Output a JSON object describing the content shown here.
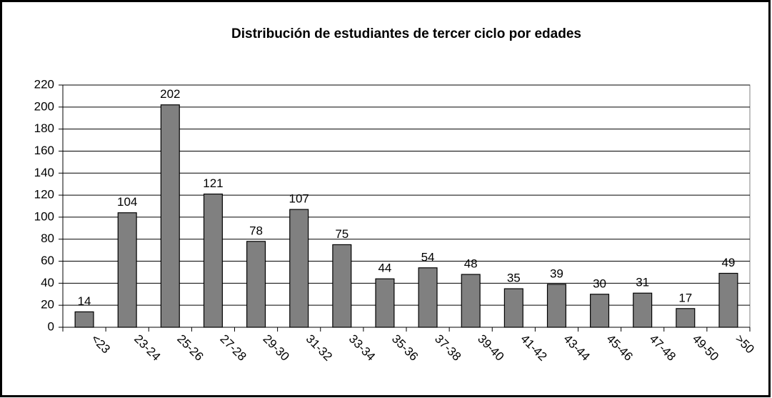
{
  "chart_data": {
    "type": "bar",
    "title": "Distribución de estudiantes de tercer ciclo por edades",
    "categories": [
      "<23",
      "23-24",
      "25-26",
      "27-28",
      "29-30",
      "31-32",
      "33-34",
      "35-36",
      "37-38",
      "39-40",
      "41-42",
      "43-44",
      "45-46",
      "47-48",
      "49-50",
      ">50"
    ],
    "values": [
      14,
      104,
      202,
      121,
      78,
      107,
      75,
      44,
      54,
      48,
      35,
      39,
      30,
      31,
      17,
      49
    ],
    "color": "#808080",
    "ylim": [
      0,
      220
    ],
    "yticks": [
      0,
      20,
      40,
      60,
      80,
      100,
      120,
      140,
      160,
      180,
      200,
      220
    ],
    "grid": true
  }
}
